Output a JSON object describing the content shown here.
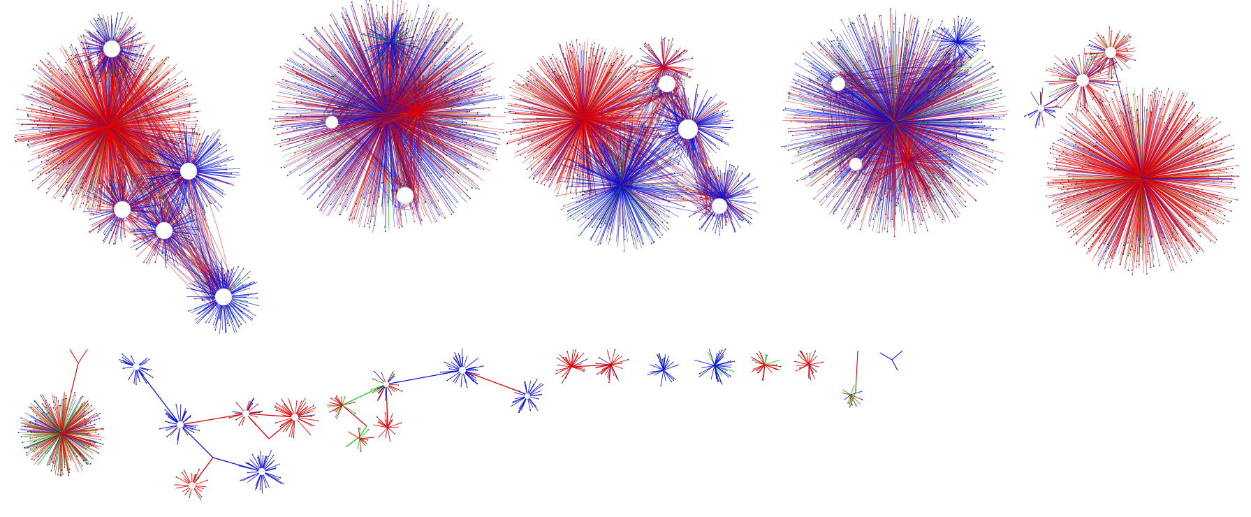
{
  "colors": {
    "background": "#ffffff",
    "red": "#e00000",
    "blue": "#0a10d8",
    "green": "#18c018",
    "node": "#ffffff",
    "node_stroke": "#bbbbbb"
  },
  "legend": "",
  "clusters": [
    {
      "id": "c1",
      "hubs": 6,
      "mix": {
        "red": 0.55,
        "blue": 0.42,
        "green": 0.03
      },
      "density": "very-high"
    },
    {
      "id": "c2",
      "hubs": 5,
      "mix": {
        "red": 0.4,
        "blue": 0.56,
        "green": 0.04
      },
      "density": "very-high"
    },
    {
      "id": "c3",
      "hubs": 6,
      "mix": {
        "red": 0.45,
        "blue": 0.52,
        "green": 0.03
      },
      "density": "very-high"
    },
    {
      "id": "c4",
      "hubs": 5,
      "mix": {
        "red": 0.35,
        "blue": 0.6,
        "green": 0.05
      },
      "density": "very-high"
    },
    {
      "id": "c5",
      "hubs": 4,
      "mix": {
        "red": 0.7,
        "blue": 0.25,
        "green": 0.05
      },
      "density": "very-high"
    },
    {
      "id": "c6",
      "hubs": 1,
      "mix": {
        "red": 0.55,
        "blue": 0.2,
        "green": 0.25
      },
      "density": "medium"
    },
    {
      "id": "c7",
      "hubs": 6,
      "mix": {
        "red": 0.4,
        "blue": 0.6,
        "green": 0.0
      },
      "density": "low"
    },
    {
      "id": "c8",
      "hubs": 5,
      "mix": {
        "red": 0.55,
        "blue": 0.35,
        "green": 0.1
      },
      "density": "low"
    },
    {
      "id": "c9",
      "hubs": 2,
      "mix": {
        "red": 0.5,
        "blue": 0.5,
        "green": 0.0
      },
      "density": "low"
    },
    {
      "id": "c10",
      "hubs": 1,
      "mix": {
        "red": 0.0,
        "blue": 1.0,
        "green": 0.0
      },
      "density": "low"
    },
    {
      "id": "c11",
      "hubs": 1,
      "mix": {
        "red": 0.0,
        "blue": 0.9,
        "green": 0.1
      },
      "density": "low"
    },
    {
      "id": "c12",
      "hubs": 1,
      "mix": {
        "red": 0.85,
        "blue": 0.0,
        "green": 0.15
      },
      "density": "low"
    },
    {
      "id": "c13",
      "hubs": 1,
      "mix": {
        "red": 0.85,
        "blue": 0.15,
        "green": 0.0
      },
      "density": "low"
    },
    {
      "id": "c14",
      "hubs": 1,
      "mix": {
        "red": 0.6,
        "blue": 0.2,
        "green": 0.2
      },
      "density": "low"
    },
    {
      "id": "c15",
      "hubs": 1,
      "mix": {
        "red": 0.0,
        "blue": 1.0,
        "green": 0.0
      },
      "density": "low"
    }
  ]
}
